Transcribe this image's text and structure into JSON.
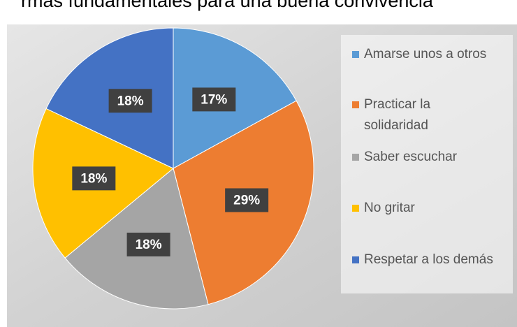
{
  "chart_data": {
    "type": "pie",
    "title": "rmas fundamentales para una buena convivencia",
    "categories": [
      "Amarse unos a otros",
      "Practicar la solidaridad",
      "Saber escuchar",
      "No gritar",
      "Respetar a los demás"
    ],
    "values": [
      17,
      29,
      18,
      18,
      18
    ],
    "value_labels": [
      "17%",
      "29%",
      "18%",
      "18%",
      "18%"
    ],
    "colors": [
      "#5b9bd5",
      "#ed7d31",
      "#a5a5a5",
      "#ffc000",
      "#4472c4"
    ],
    "legend": "right"
  }
}
